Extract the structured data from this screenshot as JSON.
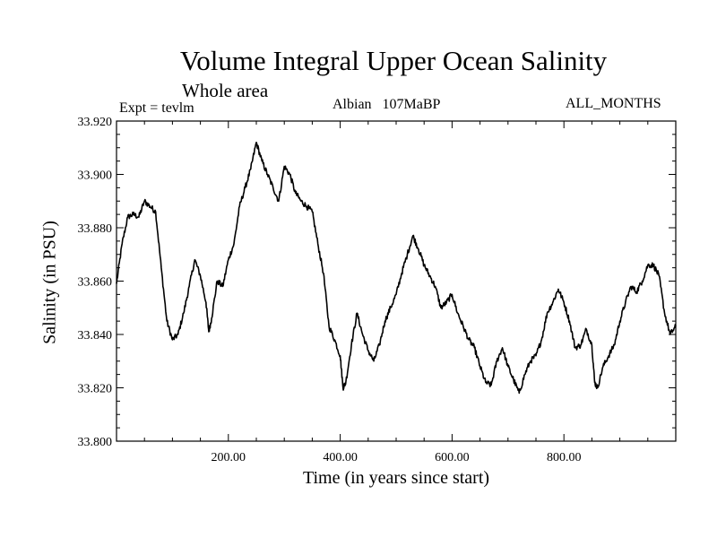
{
  "chart_data": {
    "type": "line",
    "title": "Volume Integral Upper Ocean Salinity",
    "subtitle": "Whole area",
    "annotations": {
      "experiment": "Expt = tevlm",
      "period": "Albian   107MaBP",
      "months": "ALL_MONTHS"
    },
    "xlabel": "Time (in years since start)",
    "ylabel": "Salinity (in PSU)",
    "xlim": [
      0,
      1000
    ],
    "ylim": [
      33.8,
      33.92
    ],
    "xticks": [
      200,
      400,
      600,
      800
    ],
    "xtick_labels": [
      "200.00",
      "400.00",
      "600.00",
      "800.00"
    ],
    "yticks": [
      33.8,
      33.82,
      33.84,
      33.86,
      33.88,
      33.9,
      33.92
    ],
    "ytick_labels": [
      "33.800",
      "33.820",
      "33.840",
      "33.860",
      "33.880",
      "33.900",
      "33.920"
    ],
    "grid": false,
    "series": [
      {
        "name": "Salinity",
        "color": "#000000",
        "points": [
          [
            0,
            33.859
          ],
          [
            10,
            33.874
          ],
          [
            20,
            33.884
          ],
          [
            30,
            33.885
          ],
          [
            40,
            33.884
          ],
          [
            50,
            33.89
          ],
          [
            60,
            33.888
          ],
          [
            70,
            33.886
          ],
          [
            80,
            33.865
          ],
          [
            90,
            33.845
          ],
          [
            100,
            33.838
          ],
          [
            110,
            33.84
          ],
          [
            120,
            33.848
          ],
          [
            130,
            33.858
          ],
          [
            140,
            33.868
          ],
          [
            150,
            33.862
          ],
          [
            160,
            33.852
          ],
          [
            165,
            33.841
          ],
          [
            170,
            33.846
          ],
          [
            180,
            33.86
          ],
          [
            190,
            33.858
          ],
          [
            200,
            33.868
          ],
          [
            210,
            33.874
          ],
          [
            220,
            33.888
          ],
          [
            230,
            33.895
          ],
          [
            240,
            33.902
          ],
          [
            250,
            33.912
          ],
          [
            260,
            33.905
          ],
          [
            270,
            33.9
          ],
          [
            280,
            33.895
          ],
          [
            290,
            33.89
          ],
          [
            300,
            33.903
          ],
          [
            310,
            33.9
          ],
          [
            320,
            33.893
          ],
          [
            330,
            33.89
          ],
          [
            340,
            33.888
          ],
          [
            350,
            33.886
          ],
          [
            360,
            33.874
          ],
          [
            370,
            33.863
          ],
          [
            380,
            33.843
          ],
          [
            390,
            33.838
          ],
          [
            400,
            33.832
          ],
          [
            405,
            33.82
          ],
          [
            410,
            33.822
          ],
          [
            420,
            33.836
          ],
          [
            430,
            33.848
          ],
          [
            440,
            33.84
          ],
          [
            450,
            33.834
          ],
          [
            460,
            33.83
          ],
          [
            470,
            33.836
          ],
          [
            480,
            33.845
          ],
          [
            490,
            33.85
          ],
          [
            500,
            33.855
          ],
          [
            510,
            33.863
          ],
          [
            520,
            33.87
          ],
          [
            530,
            33.877
          ],
          [
            540,
            33.872
          ],
          [
            550,
            33.866
          ],
          [
            560,
            33.862
          ],
          [
            570,
            33.858
          ],
          [
            580,
            33.85
          ],
          [
            590,
            33.852
          ],
          [
            600,
            33.855
          ],
          [
            610,
            33.848
          ],
          [
            620,
            33.843
          ],
          [
            630,
            33.838
          ],
          [
            640,
            33.835
          ],
          [
            650,
            33.828
          ],
          [
            660,
            33.822
          ],
          [
            670,
            33.821
          ],
          [
            680,
            33.83
          ],
          [
            690,
            33.835
          ],
          [
            700,
            33.828
          ],
          [
            710,
            33.823
          ],
          [
            720,
            33.818
          ],
          [
            730,
            33.825
          ],
          [
            740,
            33.83
          ],
          [
            750,
            33.832
          ],
          [
            760,
            33.838
          ],
          [
            770,
            33.848
          ],
          [
            780,
            33.852
          ],
          [
            790,
            33.857
          ],
          [
            800,
            33.852
          ],
          [
            810,
            33.845
          ],
          [
            820,
            33.835
          ],
          [
            830,
            33.836
          ],
          [
            840,
            33.842
          ],
          [
            850,
            33.836
          ],
          [
            855,
            33.822
          ],
          [
            860,
            33.82
          ],
          [
            870,
            33.828
          ],
          [
            880,
            33.832
          ],
          [
            890,
            33.836
          ],
          [
            900,
            33.845
          ],
          [
            910,
            33.852
          ],
          [
            920,
            33.858
          ],
          [
            930,
            33.856
          ],
          [
            940,
            33.86
          ],
          [
            950,
            33.866
          ],
          [
            960,
            33.866
          ],
          [
            970,
            33.862
          ],
          [
            980,
            33.848
          ],
          [
            990,
            33.84
          ],
          [
            1000,
            33.843
          ]
        ]
      }
    ]
  }
}
